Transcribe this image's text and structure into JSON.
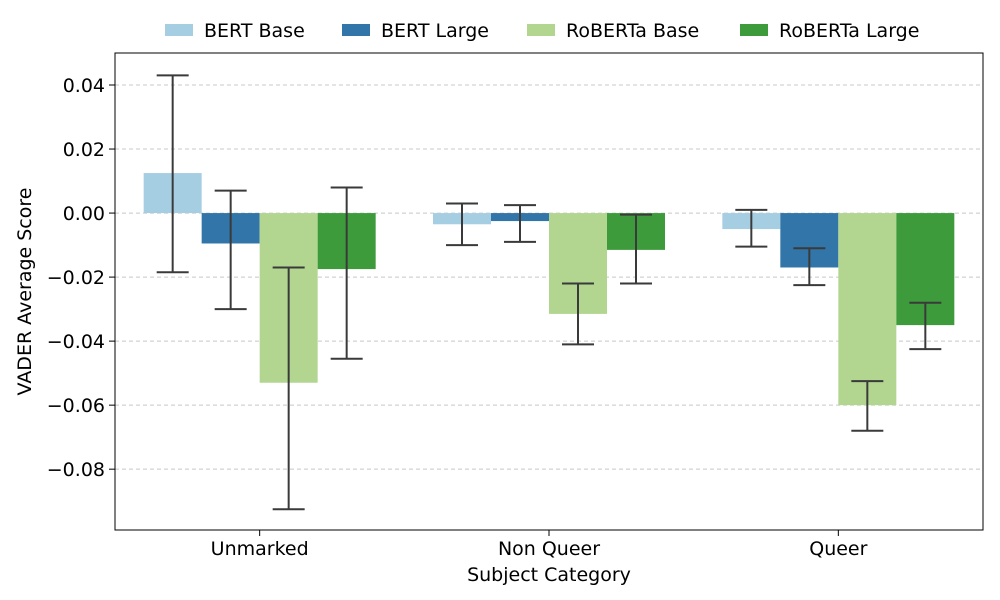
{
  "chart_data": {
    "type": "bar",
    "xlabel": "Subject Category",
    "ylabel": "VADER Average Score",
    "categories": [
      "Unmarked",
      "Non Queer",
      "Queer"
    ],
    "ylim": [
      -0.099,
      0.05
    ],
    "yticks": [
      0.04,
      0.02,
      0.0,
      -0.02,
      -0.04,
      -0.06,
      -0.08
    ],
    "ytick_labels": [
      "0.04",
      "0.02",
      "0.00",
      "−0.02",
      "−0.04",
      "−0.06",
      "−0.08"
    ],
    "grid": "horizontal dashed",
    "legend_position": "top",
    "series": [
      {
        "name": "BERT Base",
        "color": "#a6cee3",
        "values": [
          0.0125,
          -0.0035,
          -0.005
        ],
        "err_low": [
          -0.0185,
          -0.01,
          -0.0105
        ],
        "err_high": [
          0.043,
          0.003,
          0.001
        ]
      },
      {
        "name": "BERT Large",
        "color": "#3275a8",
        "values": [
          -0.0095,
          -0.0025,
          -0.017
        ],
        "err_low": [
          -0.03,
          -0.009,
          -0.0225
        ],
        "err_high": [
          0.007,
          0.0025,
          -0.011
        ]
      },
      {
        "name": "RoBERTa Base",
        "color": "#b2d690",
        "values": [
          -0.053,
          -0.0315,
          -0.06
        ],
        "err_low": [
          -0.0925,
          -0.041,
          -0.068
        ],
        "err_high": [
          -0.017,
          -0.022,
          -0.0525
        ]
      },
      {
        "name": "RoBERTa Large",
        "color": "#3d9b3c",
        "values": [
          -0.0175,
          -0.0115,
          -0.035
        ],
        "err_low": [
          -0.0455,
          -0.022,
          -0.0425
        ],
        "err_high": [
          0.008,
          -0.0005,
          -0.028
        ]
      }
    ]
  }
}
